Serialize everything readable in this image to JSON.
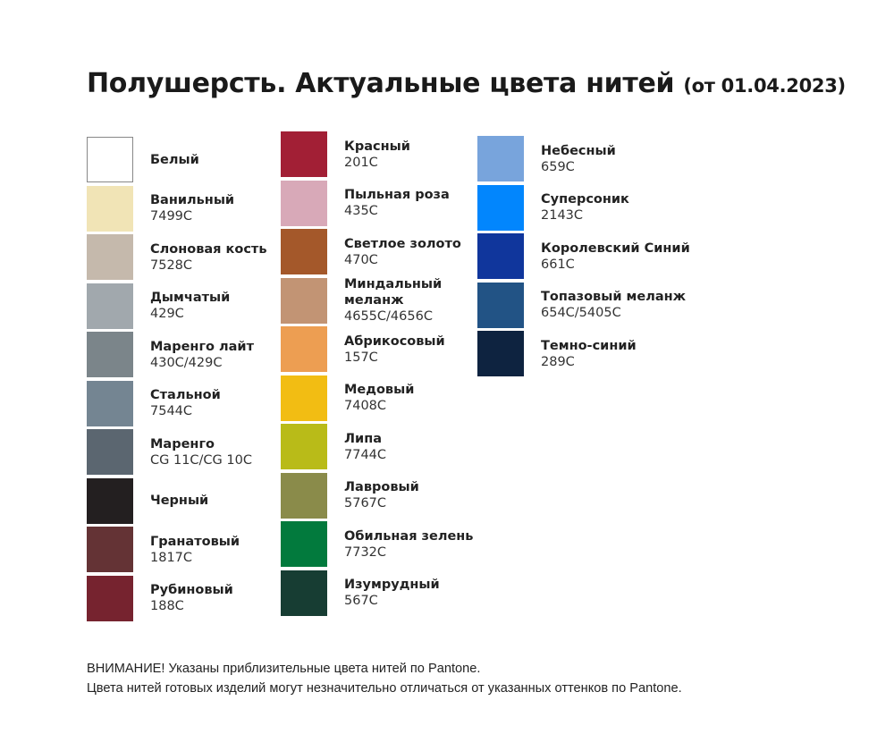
{
  "title": {
    "main": "Полушерсть. Актуальные цвета нитей",
    "date": "(от 01.04.2023)"
  },
  "columns": [
    [
      {
        "name": "Белый",
        "code": "",
        "color": "#ffffff"
      },
      {
        "name": "Ванильный",
        "code": "7499C",
        "color": "#f1e4b6"
      },
      {
        "name": "Слоновая кость",
        "code": "7528C",
        "color": "#c5b9ac"
      },
      {
        "name": "Дымчатый",
        "code": "429C",
        "color": "#a1a8ad"
      },
      {
        "name": "Маренго лайт",
        "code": "430C/429C",
        "color": "#7b858a"
      },
      {
        "name": "Стальной",
        "code": "7544C",
        "color": "#748592"
      },
      {
        "name": "Маренго",
        "code": "CG 11C/CG 10C",
        "color": "#5b6670"
      },
      {
        "name": "Черный",
        "code": "",
        "color": "#231f20"
      },
      {
        "name": "Гранатовый",
        "code": "1817C",
        "color": "#643335"
      },
      {
        "name": "Рубиновый",
        "code": "188C",
        "color": "#76232f"
      }
    ],
    [
      {
        "name": "Красный",
        "code": "201C",
        "color": "#a21f35"
      },
      {
        "name": "Пыльная роза",
        "code": "435C",
        "color": "#d8a9b8"
      },
      {
        "name": "Светлое золото",
        "code": "470C",
        "color": "#a4582a"
      },
      {
        "name": "Миндальный меланж",
        "code": "4655C/4656C",
        "color": "#c29474",
        "wrap": true
      },
      {
        "name": "Абрикосовый",
        "code": "157C",
        "color": "#ed9e52"
      },
      {
        "name": "Медовый",
        "code": "7408C",
        "color": "#f2bd13"
      },
      {
        "name": "Липа",
        "code": "7744C",
        "color": "#b9bb18"
      },
      {
        "name": "Лавровый",
        "code": "5767C",
        "color": "#8a8b4a"
      },
      {
        "name": "Обильная зелень",
        "code": "7732C",
        "color": "#027a3d"
      },
      {
        "name": "Изумрудный",
        "code": "567C",
        "color": "#173d33"
      }
    ],
    [
      {
        "name": "Небесный",
        "code": "659C",
        "color": "#78a4dc"
      },
      {
        "name": "Суперсоник",
        "code": "2143C",
        "color": "#0286fd"
      },
      {
        "name": "Королевский Синий",
        "code": "661C",
        "color": "#10369c"
      },
      {
        "name": "Топазовый меланж",
        "code": "654C/5405C",
        "color": "#225385"
      },
      {
        "name": "Темно-синий",
        "code": "289C",
        "color": "#0e2340"
      }
    ]
  ],
  "notes": [
    "ВНИМАНИЕ! Указаны приблизительные цвета нитей по Pantone.",
    "Цвета нитей готовых изделий могут незначительно отличаться от указанных оттенков по Pantone."
  ]
}
